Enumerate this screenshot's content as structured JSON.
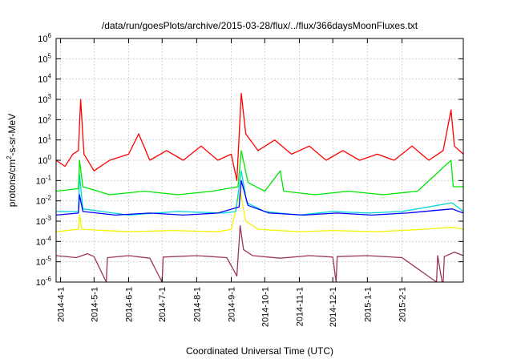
{
  "chart_data": {
    "type": "line",
    "title": "/data/run/goesPlots/archive/2015-03-28/flux/../flux/366daysMoonFluxes.txt",
    "xlabel": "Coordinated Universal Time (UTC)",
    "ylabel": {
      "base": "protons/cm",
      "sup": "2",
      "rest": "-s-sr-MeV"
    },
    "xlim": [
      "2014-03-28",
      "2015-03-28"
    ],
    "ylim": [
      1e-06,
      1000000.0
    ],
    "yscale": "log",
    "grid": true,
    "x_ticks": [
      {
        "label": "2014-4-1",
        "date": "2014-04-01"
      },
      {
        "label": "2014-5-1",
        "date": "2014-05-01"
      },
      {
        "label": "2014-6-1",
        "date": "2014-06-01"
      },
      {
        "label": "2014-7-1",
        "date": "2014-07-01"
      },
      {
        "label": "2014-8-1",
        "date": "2014-08-01"
      },
      {
        "label": "2014-9-1",
        "date": "2014-09-01"
      },
      {
        "label": "2014-10-1",
        "date": "2014-10-01"
      },
      {
        "label": "2014-11-1",
        "date": "2014-11-01"
      },
      {
        "label": "2014-12-1",
        "date": "2014-12-01"
      },
      {
        "label": "2015-1-1",
        "date": "2015-01-01"
      },
      {
        "label": "2015-2-1",
        "date": "2015-02-01"
      }
    ],
    "y_ticks": [
      {
        "base": "10",
        "exp": "-6",
        "value": 1e-06
      },
      {
        "base": "10",
        "exp": "-5",
        "value": 1e-05
      },
      {
        "base": "10",
        "exp": "-4",
        "value": 0.0001
      },
      {
        "base": "10",
        "exp": "-3",
        "value": 0.001
      },
      {
        "base": "10",
        "exp": "-2",
        "value": 0.01
      },
      {
        "base": "10",
        "exp": "-1",
        "value": 0.1
      },
      {
        "base": "10",
        "exp": "0",
        "value": 1
      },
      {
        "base": "10",
        "exp": "1",
        "value": 10
      },
      {
        "base": "10",
        "exp": "2",
        "value": 100
      },
      {
        "base": "10",
        "exp": "3",
        "value": 1000
      },
      {
        "base": "10",
        "exp": "4",
        "value": 10000
      },
      {
        "base": "10",
        "exp": "5",
        "value": 100000
      },
      {
        "base": "10",
        "exp": "6",
        "value": 1000000
      }
    ],
    "series": [
      {
        "color": "#9a3560",
        "values": [
          [
            "2014-03-28",
            2e-05
          ],
          [
            "2014-04-15",
            1.6e-05
          ],
          [
            "2014-04-25",
            2.5e-05
          ],
          [
            "2014-05-01",
            1.8e-05
          ],
          [
            "2014-05-12",
            1e-06
          ],
          [
            "2014-05-13",
            1.6e-05
          ],
          [
            "2014-06-01",
            2e-05
          ],
          [
            "2014-06-20",
            1.5e-05
          ],
          [
            "2014-07-01",
            1e-06
          ],
          [
            "2014-07-02",
            1.7e-05
          ],
          [
            "2014-08-01",
            2e-05
          ],
          [
            "2014-08-28",
            1.6e-05
          ],
          [
            "2014-09-06",
            2e-06
          ],
          [
            "2014-09-09",
            0.0006
          ],
          [
            "2014-09-12",
            4e-05
          ],
          [
            "2014-09-20",
            2e-05
          ],
          [
            "2014-10-15",
            1.5e-05
          ],
          [
            "2014-11-10",
            2e-05
          ],
          [
            "2014-12-01",
            1.7e-05
          ],
          [
            "2014-12-04",
            1e-06
          ],
          [
            "2014-12-05",
            1.8e-05
          ],
          [
            "2015-01-01",
            2e-05
          ],
          [
            "2015-02-01",
            1.6e-05
          ],
          [
            "2015-03-04",
            1e-06
          ],
          [
            "2015-03-05",
            2e-05
          ],
          [
            "2015-03-09",
            1e-06
          ],
          [
            "2015-03-10",
            1e-06
          ],
          [
            "2015-03-11",
            1.8e-05
          ],
          [
            "2015-03-20",
            3e-05
          ],
          [
            "2015-03-28",
            2e-05
          ]
        ]
      },
      {
        "color": "#f2f200",
        "values": [
          [
            "2014-03-28",
            0.0003
          ],
          [
            "2014-04-17",
            0.0004
          ],
          [
            "2014-04-18",
            0.002
          ],
          [
            "2014-04-20",
            0.0004
          ],
          [
            "2014-06-01",
            0.0003
          ],
          [
            "2014-07-10",
            0.00035
          ],
          [
            "2014-08-20",
            0.0003
          ],
          [
            "2014-09-01",
            0.0004
          ],
          [
            "2014-09-09",
            0.03
          ],
          [
            "2014-09-14",
            0.001
          ],
          [
            "2014-09-25",
            0.0004
          ],
          [
            "2014-11-01",
            0.0003
          ],
          [
            "2014-12-01",
            0.00035
          ],
          [
            "2015-01-10",
            0.0003
          ],
          [
            "2015-02-20",
            0.0004
          ],
          [
            "2015-03-18",
            0.0005
          ],
          [
            "2015-03-28",
            0.0004
          ]
        ]
      },
      {
        "color": "#00d6d6",
        "values": [
          [
            "2014-03-28",
            0.003
          ],
          [
            "2014-04-17",
            0.003
          ],
          [
            "2014-04-18",
            0.2
          ],
          [
            "2014-04-21",
            0.004
          ],
          [
            "2014-06-01",
            0.002
          ],
          [
            "2014-07-15",
            0.003
          ],
          [
            "2014-08-25",
            0.0025
          ],
          [
            "2014-09-05",
            0.003
          ],
          [
            "2014-09-10",
            0.3
          ],
          [
            "2014-09-15",
            0.008
          ],
          [
            "2014-10-01",
            0.003
          ],
          [
            "2014-11-01",
            0.002
          ],
          [
            "2014-12-01",
            0.003
          ],
          [
            "2015-01-01",
            0.0025
          ],
          [
            "2015-02-01",
            0.003
          ],
          [
            "2015-03-18",
            0.008
          ],
          [
            "2015-03-28",
            0.003
          ]
        ]
      },
      {
        "color": "#0000ff",
        "values": [
          [
            "2014-03-28",
            0.002
          ],
          [
            "2014-04-17",
            0.0025
          ],
          [
            "2014-04-18",
            0.02
          ],
          [
            "2014-04-21",
            0.003
          ],
          [
            "2014-05-20",
            0.002
          ],
          [
            "2014-06-20",
            0.0025
          ],
          [
            "2014-07-20",
            0.002
          ],
          [
            "2014-08-20",
            0.0025
          ],
          [
            "2014-09-08",
            0.005
          ],
          [
            "2014-09-10",
            0.1
          ],
          [
            "2014-09-16",
            0.006
          ],
          [
            "2014-10-05",
            0.0025
          ],
          [
            "2014-11-05",
            0.002
          ],
          [
            "2014-12-05",
            0.0025
          ],
          [
            "2015-01-05",
            0.002
          ],
          [
            "2015-02-05",
            0.0025
          ],
          [
            "2015-03-18",
            0.004
          ],
          [
            "2015-03-28",
            0.0025
          ]
        ]
      },
      {
        "color": "#00e600",
        "values": [
          [
            "2014-03-28",
            0.03
          ],
          [
            "2014-04-17",
            0.04
          ],
          [
            "2014-04-18",
            1
          ],
          [
            "2014-04-21",
            0.05
          ],
          [
            "2014-05-15",
            0.02
          ],
          [
            "2014-06-15",
            0.03
          ],
          [
            "2014-07-15",
            0.02
          ],
          [
            "2014-08-15",
            0.03
          ],
          [
            "2014-09-07",
            0.05
          ],
          [
            "2014-09-10",
            3
          ],
          [
            "2014-09-16",
            0.08
          ],
          [
            "2014-10-01",
            0.03
          ],
          [
            "2014-10-15",
            0.3
          ],
          [
            "2014-10-18",
            0.03
          ],
          [
            "2014-11-15",
            0.02
          ],
          [
            "2014-12-15",
            0.03
          ],
          [
            "2015-01-15",
            0.02
          ],
          [
            "2015-02-15",
            0.03
          ],
          [
            "2015-03-17",
            1
          ],
          [
            "2015-03-19",
            0.05
          ],
          [
            "2015-03-28",
            0.05
          ]
        ]
      },
      {
        "color": "#ff0000",
        "values": [
          [
            "2014-03-28",
            1
          ],
          [
            "2014-04-05",
            0.5
          ],
          [
            "2014-04-12",
            2
          ],
          [
            "2014-04-17",
            3
          ],
          [
            "2014-04-19",
            1000
          ],
          [
            "2014-04-22",
            2
          ],
          [
            "2014-05-01",
            0.3
          ],
          [
            "2014-05-15",
            1
          ],
          [
            "2014-06-01",
            2
          ],
          [
            "2014-06-10",
            20
          ],
          [
            "2014-06-20",
            1
          ],
          [
            "2014-07-05",
            3
          ],
          [
            "2014-07-20",
            1
          ],
          [
            "2014-08-05",
            5
          ],
          [
            "2014-08-20",
            1
          ],
          [
            "2014-09-01",
            2
          ],
          [
            "2014-09-06",
            0.1
          ],
          [
            "2014-09-10",
            2000
          ],
          [
            "2014-09-14",
            20
          ],
          [
            "2014-09-25",
            3
          ],
          [
            "2014-10-10",
            10
          ],
          [
            "2014-10-25",
            2
          ],
          [
            "2014-11-10",
            5
          ],
          [
            "2014-11-25",
            1
          ],
          [
            "2014-12-10",
            3
          ],
          [
            "2014-12-25",
            1
          ],
          [
            "2015-01-10",
            2
          ],
          [
            "2015-01-25",
            1
          ],
          [
            "2015-02-10",
            5
          ],
          [
            "2015-02-25",
            1
          ],
          [
            "2015-03-10",
            3
          ],
          [
            "2015-03-17",
            300
          ],
          [
            "2015-03-20",
            5
          ],
          [
            "2015-03-28",
            2
          ]
        ]
      }
    ]
  }
}
